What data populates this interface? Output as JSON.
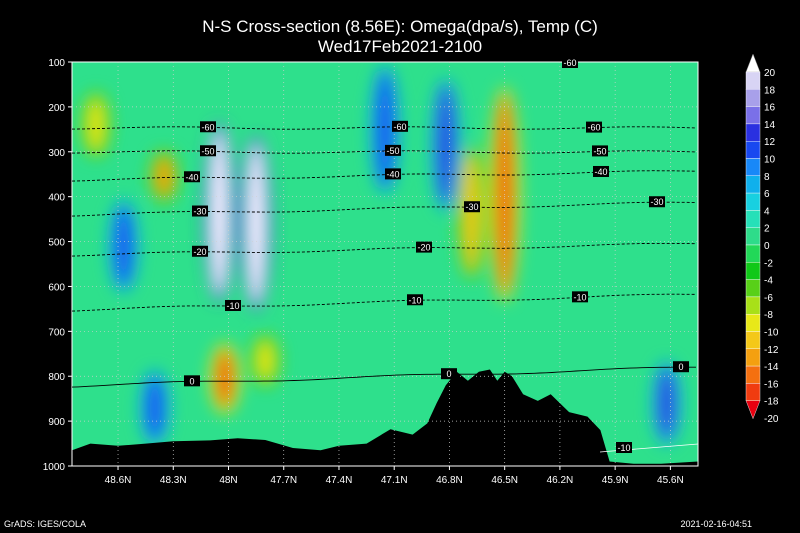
{
  "title": {
    "line1": "N-S Cross-section (8.56E): Omega(dpa/s), Temp (C)",
    "line2": "Wed17Feb2021-2100"
  },
  "footer": {
    "left": "GrADS: IGES/COLA",
    "right": "2021-02-16-04:51"
  },
  "colors": {
    "background": "#000000",
    "terrain": "#000000",
    "field_base": "#2ee08c"
  },
  "chart_data": {
    "type": "heatmap",
    "title": "N-S Cross-section (8.56E): Omega(dpa/s), Temp (C)",
    "subtitle": "Wed17Feb2021-2100",
    "y_axis": {
      "ticks": [
        100,
        200,
        300,
        400,
        500,
        600,
        700,
        800,
        900,
        1000
      ],
      "range": [
        100,
        1000
      ],
      "inverted": true
    },
    "x_axis": {
      "ticks": [
        "48.6N",
        "48.3N",
        "48N",
        "47.7N",
        "47.4N",
        "47.1N",
        "46.8N",
        "46.5N",
        "46.2N",
        "45.9N",
        "45.6N"
      ],
      "tick_values": [
        48.6,
        48.3,
        48.0,
        47.7,
        47.4,
        47.1,
        46.8,
        46.5,
        46.2,
        45.9,
        45.6
      ],
      "range": [
        48.85,
        45.45
      ]
    },
    "grid": true,
    "colorbar": {
      "levels": [
        20,
        18,
        16,
        14,
        12,
        10,
        8,
        6,
        4,
        2,
        0,
        -2,
        -4,
        -6,
        -8,
        -10,
        -12,
        -14,
        -16,
        -18,
        -20
      ],
      "colors": [
        "#ffffff",
        "#d8d4f4",
        "#a8a0ea",
        "#7a70e8",
        "#2a30e0",
        "#1848f0",
        "#1888f8",
        "#10b0ec",
        "#18d0e0",
        "#26e0b8",
        "#2edc8a",
        "#22d858",
        "#10c818",
        "#58d018",
        "#a8e018",
        "#e8e818",
        "#f4c818",
        "#f4a010",
        "#f47010",
        "#f03c10",
        "#e80010"
      ],
      "placement": "right"
    },
    "temperature_contours": [
      {
        "value": -60,
        "labels": [
          "-60",
          "-60",
          "-60"
        ]
      },
      {
        "value": -50,
        "labels": [
          "-50",
          "-50",
          "-50"
        ]
      },
      {
        "value": -40,
        "labels": [
          "-40",
          "-40",
          "-40"
        ]
      },
      {
        "value": -30,
        "labels": [
          "-30",
          "-30",
          "-30"
        ]
      },
      {
        "value": -20,
        "labels": [
          "-20",
          "-20"
        ]
      },
      {
        "value": -10,
        "labels": [
          "-10",
          "-10",
          "-10",
          "-10"
        ]
      },
      {
        "value": 0,
        "labels": [
          "0",
          "0",
          "0"
        ]
      }
    ],
    "top_label": "-60",
    "omega_features": [
      {
        "lat": 48.05,
        "p_top": 250,
        "p_bottom": 620,
        "value": 20
      },
      {
        "lat": 47.85,
        "p_top": 280,
        "p_bottom": 640,
        "value": 20
      },
      {
        "lat": 48.57,
        "p_top": 420,
        "p_bottom": 600,
        "value": 10
      },
      {
        "lat": 48.35,
        "p_top": 310,
        "p_bottom": 400,
        "value": -14
      },
      {
        "lat": 48.02,
        "p_top": 740,
        "p_bottom": 870,
        "value": -18
      },
      {
        "lat": 47.8,
        "p_top": 720,
        "p_bottom": 810,
        "value": -10
      },
      {
        "lat": 46.82,
        "p_top": 150,
        "p_bottom": 420,
        "value": 12
      },
      {
        "lat": 46.68,
        "p_top": 300,
        "p_bottom": 570,
        "value": -12
      },
      {
        "lat": 46.5,
        "p_top": 170,
        "p_bottom": 620,
        "value": -18
      },
      {
        "lat": 47.15,
        "p_top": 120,
        "p_bottom": 380,
        "value": 10
      },
      {
        "lat": 48.72,
        "p_top": 180,
        "p_bottom": 300,
        "value": -10
      },
      {
        "lat": 48.4,
        "p_top": 800,
        "p_bottom": 940,
        "value": 10
      },
      {
        "lat": 45.62,
        "p_top": 780,
        "p_bottom": 940,
        "value": 12
      }
    ],
    "terrain_surface": [
      [
        48.85,
        965
      ],
      [
        48.75,
        950
      ],
      [
        48.6,
        955
      ],
      [
        48.45,
        950
      ],
      [
        48.3,
        945
      ],
      [
        48.1,
        943
      ],
      [
        47.95,
        938
      ],
      [
        47.8,
        942
      ],
      [
        47.65,
        960
      ],
      [
        47.5,
        965
      ],
      [
        47.4,
        955
      ],
      [
        47.25,
        950
      ],
      [
        47.12,
        918
      ],
      [
        47.0,
        930
      ],
      [
        46.92,
        905
      ],
      [
        46.87,
        860
      ],
      [
        46.82,
        820
      ],
      [
        46.76,
        790
      ],
      [
        46.7,
        810
      ],
      [
        46.64,
        790
      ],
      [
        46.58,
        785
      ],
      [
        46.54,
        810
      ],
      [
        46.5,
        790
      ],
      [
        46.46,
        800
      ],
      [
        46.4,
        840
      ],
      [
        46.32,
        855
      ],
      [
        46.25,
        840
      ],
      [
        46.15,
        880
      ],
      [
        46.05,
        890
      ],
      [
        45.98,
        920
      ],
      [
        45.93,
        990
      ],
      [
        45.8,
        995
      ],
      [
        45.65,
        995
      ],
      [
        45.45,
        990
      ]
    ]
  }
}
